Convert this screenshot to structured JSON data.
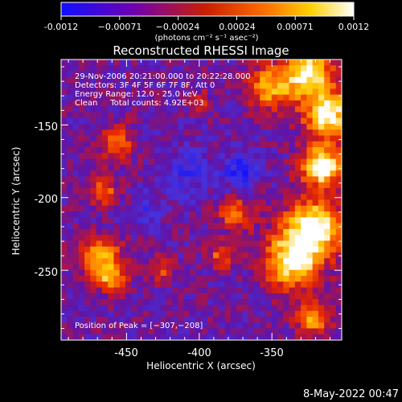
{
  "chart_data": {
    "type": "heatmap",
    "title": "Reconstructed RHESSI Image",
    "xlabel": "Heliocentric X (arcsec)",
    "ylabel": "Heliocentric Y (arcsec)",
    "xlim": [
      -495,
      -302
    ],
    "ylim": [
      -298,
      -105
    ],
    "xticks": [
      -450,
      -400,
      -350
    ],
    "yticks": [
      -150,
      -200,
      -250
    ],
    "colorbar": {
      "label": "(photons cm⁻² s⁻¹ asec⁻²)",
      "range": [
        -0.0012,
        0.0012
      ],
      "ticks": [
        "-0.0012",
        "−0.00071",
        "−0.00024",
        "0.00024",
        "0.00071",
        "0.0012"
      ],
      "stops": [
        "#1010ff",
        "#7000b0",
        "#cc2000",
        "#ff7000",
        "#ffd000",
        "#ffffff"
      ]
    },
    "annotations": {
      "time": "29-Nov-2006 20:21:00.000 to 20:22:28.000",
      "detectors": "Detectors: 3F 4F 5F 6F 7F 8F, Att 0",
      "energy": "Energy Range: 12.0 - 25.0 keV",
      "clean": "Clean     Total counts: 4.92E+03",
      "peak": "Position of Peak = [−307,−208]"
    },
    "peak_position": [
      -307,
      -208
    ],
    "date_stamp": "8-May-2022 00:47"
  }
}
